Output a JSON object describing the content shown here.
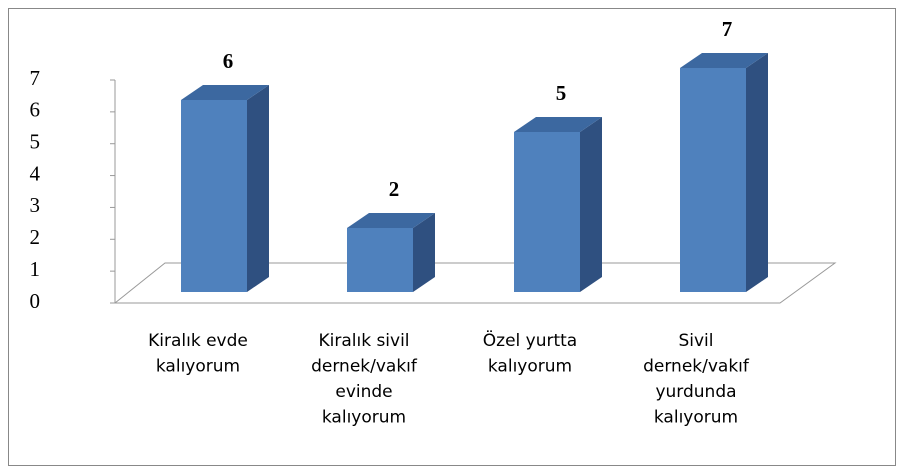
{
  "chart_data": {
    "type": "bar3d",
    "categories": [
      "Kiralık evde\nkalıyorum",
      "Kiralık sivil\ndernek/vakıf\nevinde\nkalıyorum",
      "Özel yurtta\nkalıyorum",
      "Sivil\ndernek/vakıf\nyurdunda\nkalıyorum"
    ],
    "values": [
      6,
      2,
      5,
      7
    ],
    "color": "#4f81bd",
    "ylim": [
      0,
      7
    ],
    "yticks": [
      0,
      1,
      2,
      3,
      4,
      5,
      6,
      7
    ]
  }
}
